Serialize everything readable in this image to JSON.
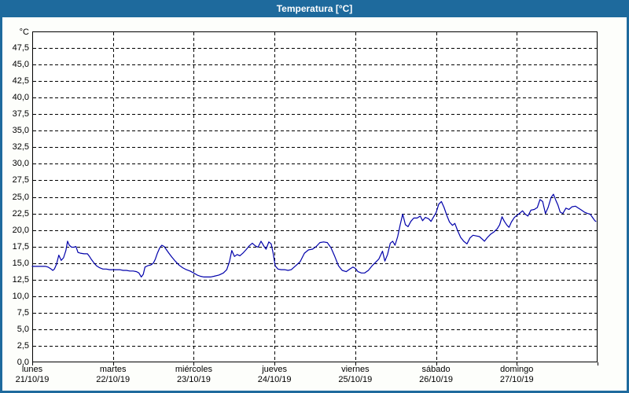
{
  "window": {
    "title": "Temperatura [°C]"
  },
  "colors": {
    "titlebar": "#1E6A9D",
    "frame_border": "#1E6A9D",
    "line": "#0000AA",
    "grid": "#000000",
    "plot_background": "#FFFFFF",
    "page_background": "#FDFEFB",
    "title_text": "#FFFFFF",
    "axis_text": "#000000"
  },
  "y_axis": {
    "unit": "°C",
    "tick_labels": [
      "47,5",
      "45,0",
      "42,5",
      "40,0",
      "37,5",
      "35,0",
      "32,5",
      "30,0",
      "27,5",
      "25,0",
      "22,5",
      "20,0",
      "17,5",
      "15,0",
      "12,5",
      "10,0",
      "7,5",
      "5,0",
      "2,5",
      "0,0"
    ],
    "tick_values": [
      47.5,
      45.0,
      42.5,
      40.0,
      37.5,
      35.0,
      32.5,
      30.0,
      27.5,
      25.0,
      22.5,
      20.0,
      17.5,
      15.0,
      12.5,
      10.0,
      7.5,
      5.0,
      2.5,
      0.0
    ]
  },
  "x_axis": {
    "days": [
      {
        "name": "lunes",
        "date": "21/10/19"
      },
      {
        "name": "martes",
        "date": "22/10/19"
      },
      {
        "name": "miércoles",
        "date": "23/10/19"
      },
      {
        "name": "jueves",
        "date": "24/10/19"
      },
      {
        "name": "viernes",
        "date": "25/10/19"
      },
      {
        "name": "sábado",
        "date": "26/10/19"
      },
      {
        "name": "domingo",
        "date": "27/10/19"
      }
    ]
  },
  "chart_data": {
    "type": "line",
    "title": "Temperatura [°C]",
    "ylabel": "°C",
    "ylim": [
      0,
      50
    ],
    "y_tick_step": 2.5,
    "xlim_hours": [
      0,
      168
    ],
    "day_span_hours": 24,
    "grid": "dashed",
    "legend": "none",
    "x_categories": [
      "lunes 21/10/19",
      "martes 22/10/19",
      "miércoles 23/10/19",
      "jueves 24/10/19",
      "viernes 25/10/19",
      "sábado 26/10/19",
      "domingo 27/10/19"
    ],
    "series": [
      {
        "name": "Temperatura",
        "color": "#0000AA",
        "points_hours_degC": [
          [
            0,
            14.5
          ],
          [
            1,
            14.5
          ],
          [
            2,
            14.5
          ],
          [
            3,
            14.5
          ],
          [
            4,
            14.5
          ],
          [
            4.7,
            14.4
          ],
          [
            5.6,
            14.1
          ],
          [
            6.1,
            13.9
          ],
          [
            6.6,
            14.1
          ],
          [
            7.2,
            14.8
          ],
          [
            7.9,
            16.2
          ],
          [
            8.6,
            15.4
          ],
          [
            9.3,
            15.8
          ],
          [
            10.0,
            16.9
          ],
          [
            10.5,
            18.3
          ],
          [
            11.0,
            17.7
          ],
          [
            11.7,
            17.4
          ],
          [
            12.4,
            17.4
          ],
          [
            13.0,
            17.5
          ],
          [
            13.6,
            16.6
          ],
          [
            14.3,
            16.5
          ],
          [
            15.4,
            16.4
          ],
          [
            16.4,
            16.4
          ],
          [
            17.0,
            16.0
          ],
          [
            17.5,
            15.6
          ],
          [
            18.4,
            15.0
          ],
          [
            19.1,
            14.6
          ],
          [
            20.0,
            14.3
          ],
          [
            21.0,
            14.1
          ],
          [
            22.0,
            14.1
          ],
          [
            23.0,
            14.0
          ],
          [
            24.0,
            14.0
          ],
          [
            25,
            14.0
          ],
          [
            26,
            14.0
          ],
          [
            27,
            13.9
          ],
          [
            28,
            13.9
          ],
          [
            29,
            13.8
          ],
          [
            30,
            13.8
          ],
          [
            31,
            13.7
          ],
          [
            31.7,
            13.5
          ],
          [
            32.4,
            12.9
          ],
          [
            33.0,
            13.3
          ],
          [
            33.5,
            14.4
          ],
          [
            34.3,
            14.6
          ],
          [
            35.2,
            14.7
          ],
          [
            36.0,
            15.0
          ],
          [
            36.6,
            15.6
          ],
          [
            37.2,
            16.5
          ],
          [
            37.9,
            17.3
          ],
          [
            38.5,
            17.7
          ],
          [
            39.2,
            17.5
          ],
          [
            39.9,
            17.0
          ],
          [
            40.6,
            16.5
          ],
          [
            41.5,
            15.9
          ],
          [
            42.5,
            15.3
          ],
          [
            43.6,
            14.7
          ],
          [
            44.7,
            14.3
          ],
          [
            45.8,
            14.0
          ],
          [
            46.9,
            13.8
          ],
          [
            48,
            13.5
          ],
          [
            49,
            13.2
          ],
          [
            50,
            13.0
          ],
          [
            51,
            12.9
          ],
          [
            52,
            12.9
          ],
          [
            53,
            12.9
          ],
          [
            54,
            13.0
          ],
          [
            55.5,
            13.2
          ],
          [
            56.8,
            13.5
          ],
          [
            57.8,
            14.0
          ],
          [
            58.6,
            15.2
          ],
          [
            59.3,
            16.9
          ],
          [
            60.1,
            16.0
          ],
          [
            60.9,
            16.3
          ],
          [
            61.7,
            16.1
          ],
          [
            62.6,
            16.5
          ],
          [
            63.5,
            17.0
          ],
          [
            64.5,
            17.6
          ],
          [
            65.4,
            18.0
          ],
          [
            66.3,
            17.6
          ],
          [
            67.1,
            17.4
          ],
          [
            68.0,
            18.3
          ],
          [
            68.9,
            17.5
          ],
          [
            69.5,
            17.1
          ],
          [
            70.3,
            18.2
          ],
          [
            71.0,
            17.9
          ],
          [
            71.6,
            16.5
          ],
          [
            72.2,
            14.6
          ],
          [
            73,
            14.1
          ],
          [
            74,
            14.0
          ],
          [
            75,
            14.0
          ],
          [
            76,
            13.9
          ],
          [
            77,
            14.0
          ],
          [
            78.3,
            14.6
          ],
          [
            79.6,
            15.2
          ],
          [
            80.9,
            16.5
          ],
          [
            82.1,
            17.0
          ],
          [
            83.3,
            17.1
          ],
          [
            84.4,
            17.5
          ],
          [
            85.5,
            18.1
          ],
          [
            86.6,
            18.2
          ],
          [
            87.7,
            18.1
          ],
          [
            88.8,
            17.3
          ],
          [
            89.9,
            16.0
          ],
          [
            91.0,
            14.6
          ],
          [
            92.1,
            13.9
          ],
          [
            93.3,
            13.7
          ],
          [
            94.4,
            14.1
          ],
          [
            95.3,
            14.4
          ],
          [
            96,
            14.2
          ],
          [
            96.8,
            13.7
          ],
          [
            97.8,
            13.5
          ],
          [
            98.8,
            13.5
          ],
          [
            99.9,
            13.9
          ],
          [
            101,
            14.6
          ],
          [
            102,
            15.1
          ],
          [
            103,
            15.6
          ],
          [
            104.1,
            16.8
          ],
          [
            104.8,
            15.3
          ],
          [
            105.6,
            16.3
          ],
          [
            106.4,
            18.0
          ],
          [
            107.1,
            18.3
          ],
          [
            107.8,
            17.7
          ],
          [
            108.6,
            19.0
          ],
          [
            109.4,
            20.9
          ],
          [
            110.1,
            22.4
          ],
          [
            110.9,
            20.8
          ],
          [
            111.7,
            20.5
          ],
          [
            112.5,
            21.3
          ],
          [
            113.4,
            21.8
          ],
          [
            114.4,
            21.8
          ],
          [
            115.3,
            22.1
          ],
          [
            116.0,
            21.4
          ],
          [
            116.8,
            21.9
          ],
          [
            117.8,
            21.7
          ],
          [
            118.5,
            21.3
          ],
          [
            119.2,
            21.9
          ],
          [
            120,
            22.6
          ],
          [
            120.8,
            23.9
          ],
          [
            121.6,
            24.3
          ],
          [
            122.4,
            23.4
          ],
          [
            123.2,
            22.2
          ],
          [
            124.0,
            21.2
          ],
          [
            124.9,
            20.7
          ],
          [
            125.6,
            21.0
          ],
          [
            126.4,
            19.9
          ],
          [
            127.3,
            18.9
          ],
          [
            128.2,
            18.3
          ],
          [
            129.2,
            17.9
          ],
          [
            130.1,
            18.8
          ],
          [
            131.0,
            19.2
          ],
          [
            132.0,
            19.1
          ],
          [
            132.9,
            19.0
          ],
          [
            133.8,
            18.6
          ],
          [
            134.4,
            18.3
          ],
          [
            135.3,
            18.9
          ],
          [
            136.3,
            19.4
          ],
          [
            137.2,
            19.7
          ],
          [
            138.2,
            20.2
          ],
          [
            138.9,
            20.8
          ],
          [
            139.6,
            22.0
          ],
          [
            140.3,
            21.3
          ],
          [
            141.1,
            20.7
          ],
          [
            141.7,
            20.4
          ],
          [
            142.4,
            21.2
          ],
          [
            143.3,
            21.9
          ],
          [
            144,
            22.2
          ],
          [
            144.8,
            22.5
          ],
          [
            145.7,
            22.9
          ],
          [
            146.5,
            22.4
          ],
          [
            147.3,
            22.1
          ],
          [
            148.2,
            23.0
          ],
          [
            149.2,
            23.1
          ],
          [
            150.1,
            23.4
          ],
          [
            150.9,
            24.6
          ],
          [
            151.7,
            24.3
          ],
          [
            152.5,
            22.5
          ],
          [
            153.3,
            23.4
          ],
          [
            154.2,
            24.9
          ],
          [
            154.9,
            25.4
          ],
          [
            155.6,
            24.5
          ],
          [
            156.2,
            23.8
          ],
          [
            156.9,
            22.7
          ],
          [
            157.7,
            22.5
          ],
          [
            158.6,
            23.3
          ],
          [
            159.5,
            23.1
          ],
          [
            160.4,
            23.5
          ],
          [
            161.4,
            23.6
          ],
          [
            162.3,
            23.3
          ],
          [
            163.2,
            23.0
          ],
          [
            164.1,
            22.7
          ],
          [
            165.0,
            22.5
          ],
          [
            165.8,
            22.4
          ],
          [
            166.5,
            21.9
          ],
          [
            167.2,
            21.4
          ],
          [
            167.5,
            21.3
          ]
        ]
      }
    ]
  }
}
